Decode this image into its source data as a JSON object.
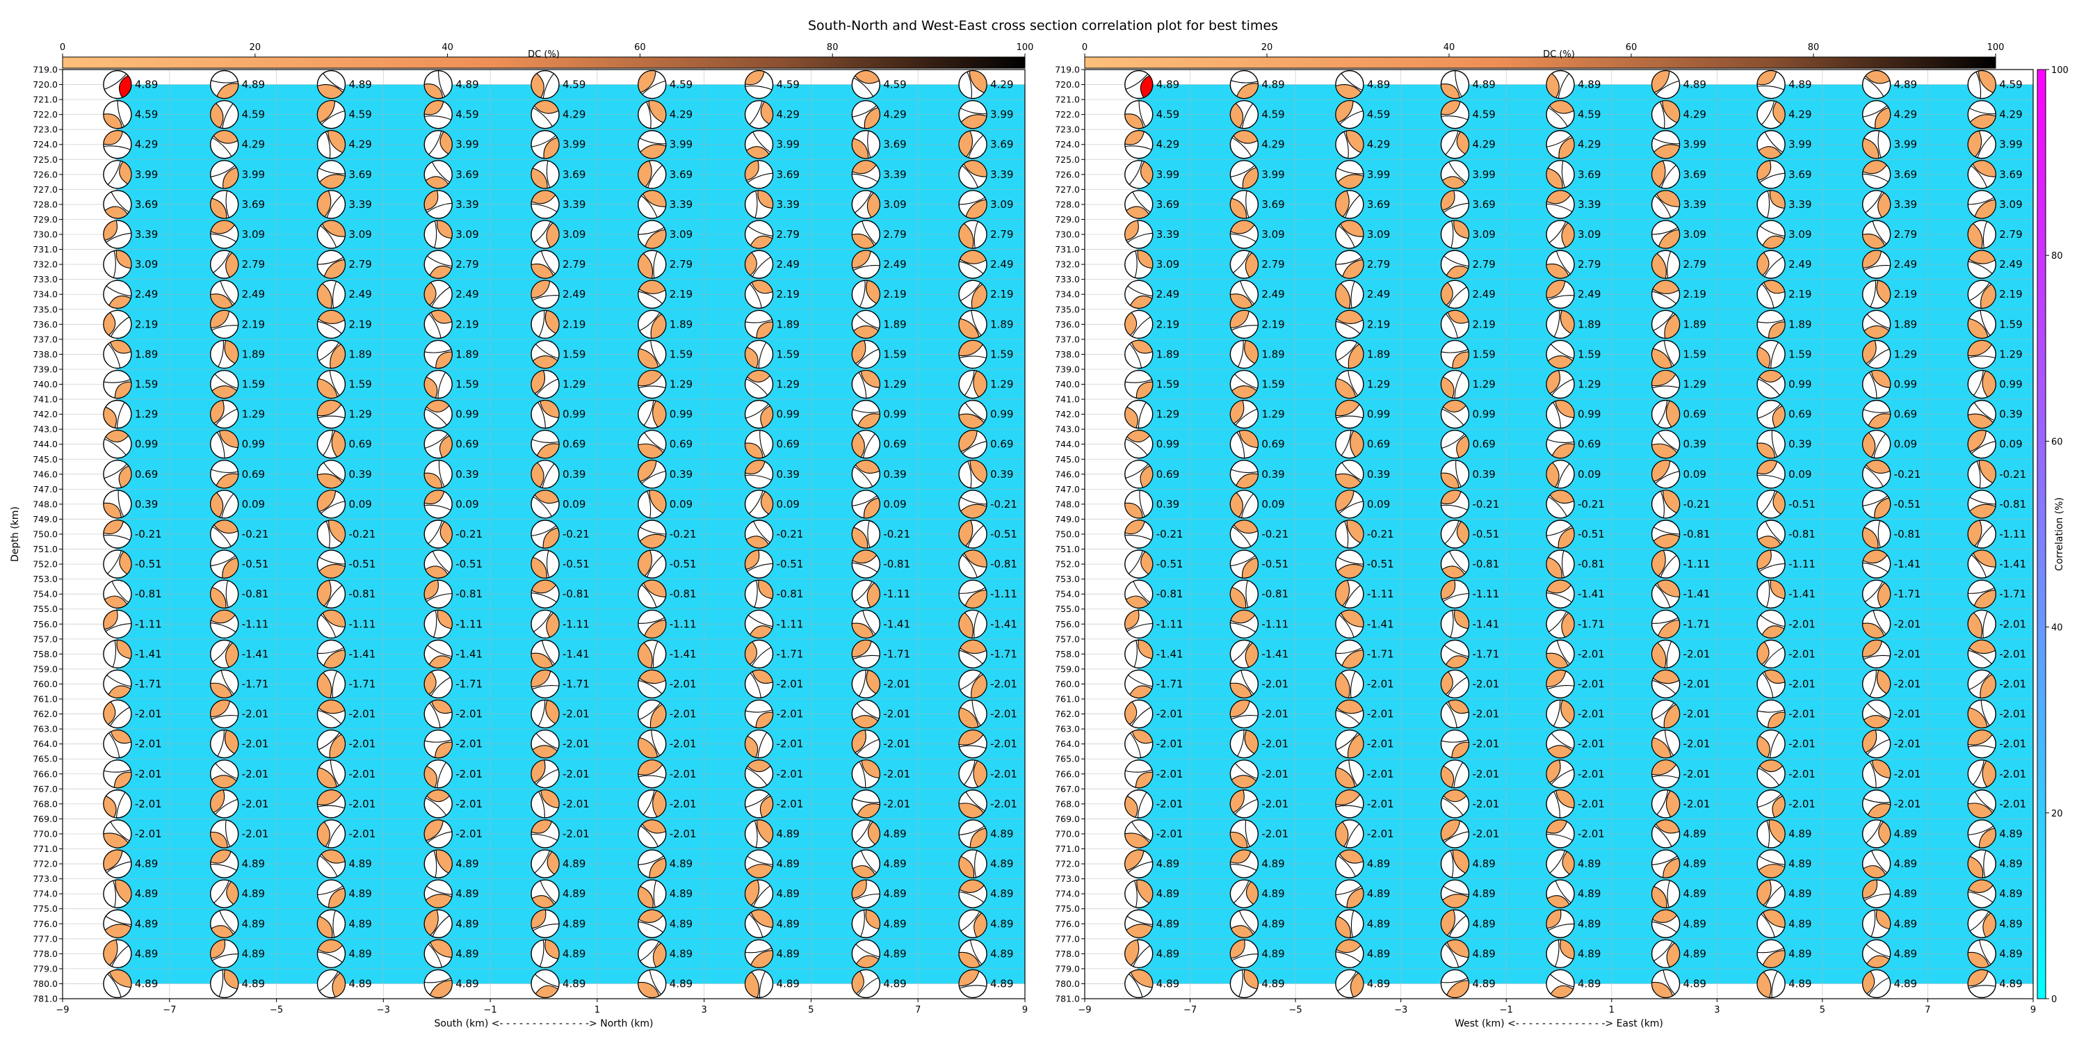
{
  "title": "South-North and West-East cross section correlation plot for best times",
  "colors": {
    "background_fill": "#29d8f8",
    "beachball_fill": "#f7a865",
    "best_solution_fill": "#ff0000",
    "dc_low": "#fdbf7a",
    "dc_mid": "#ee8f55",
    "dc_high": "#000000",
    "corr_low": "#00ffff",
    "corr_high": "#ff00ff"
  },
  "colorbars": {
    "dc": {
      "label": "DC (%)",
      "ticks": [
        "0",
        "20",
        "40",
        "60",
        "80",
        "100"
      ]
    },
    "correlation": {
      "label": "Correlation (%)",
      "ticks": [
        "0",
        "20",
        "40",
        "60",
        "80",
        "100"
      ]
    }
  },
  "chart_data": [
    {
      "type": "scatter",
      "name_panel": "south-north",
      "ylabel": "Depth (km)",
      "xlabel": "South (km) <- - - - - - - - - - - - - -> North (km)",
      "xlim": [
        -9,
        9
      ],
      "ylim": [
        781,
        719
      ],
      "x_ticks": [
        "−9",
        "−7",
        "−5",
        "−3",
        "−1",
        "1",
        "3",
        "5",
        "7",
        "9"
      ],
      "y_ticks": [
        "719.0",
        "720.0",
        "721.0",
        "722.0",
        "723.0",
        "724.0",
        "725.0",
        "726.0",
        "727.0",
        "728.0",
        "729.0",
        "730.0",
        "731.0",
        "732.0",
        "733.0",
        "734.0",
        "735.0",
        "736.0",
        "737.0",
        "738.0",
        "739.0",
        "740.0",
        "741.0",
        "742.0",
        "743.0",
        "744.0",
        "745.0",
        "746.0",
        "747.0",
        "748.0",
        "749.0",
        "750.0",
        "751.0",
        "752.0",
        "753.0",
        "754.0",
        "755.0",
        "756.0",
        "757.0",
        "758.0",
        "759.0",
        "760.0",
        "761.0",
        "762.0",
        "763.0",
        "764.0",
        "765.0",
        "766.0",
        "767.0",
        "768.0",
        "769.0",
        "770.0",
        "771.0",
        "772.0",
        "773.0",
        "774.0",
        "775.0",
        "776.0",
        "777.0",
        "778.0",
        "779.0",
        "780.0",
        "781.0"
      ],
      "x": [
        -8,
        -6,
        -4,
        -2,
        0,
        2,
        4,
        6,
        8
      ],
      "depths": [
        720,
        722,
        724,
        726,
        728,
        730,
        732,
        734,
        736,
        738,
        740,
        742,
        744,
        746,
        748,
        750,
        752,
        754,
        756,
        758,
        760,
        762,
        764,
        766,
        768,
        770,
        772,
        774,
        776,
        778,
        780
      ],
      "best": {
        "x": -8,
        "depth": 720
      },
      "labels": [
        [
          "4.89",
          "4.89",
          "4.89",
          "4.89",
          "4.59",
          "4.59",
          "4.59",
          "4.59",
          "4.29"
        ],
        [
          "4.59",
          "4.59",
          "4.59",
          "4.59",
          "4.29",
          "4.29",
          "4.29",
          "4.29",
          "3.99"
        ],
        [
          "4.29",
          "4.29",
          "4.29",
          "3.99",
          "3.99",
          "3.99",
          "3.99",
          "3.69",
          "3.69"
        ],
        [
          "3.99",
          "3.99",
          "3.69",
          "3.69",
          "3.69",
          "3.69",
          "3.69",
          "3.39",
          "3.39"
        ],
        [
          "3.69",
          "3.69",
          "3.39",
          "3.39",
          "3.39",
          "3.39",
          "3.39",
          "3.09",
          "3.09"
        ],
        [
          "3.39",
          "3.09",
          "3.09",
          "3.09",
          "3.09",
          "3.09",
          "2.79",
          "2.79",
          "2.79"
        ],
        [
          "3.09",
          "2.79",
          "2.79",
          "2.79",
          "2.79",
          "2.79",
          "2.49",
          "2.49",
          "2.49"
        ],
        [
          "2.49",
          "2.49",
          "2.49",
          "2.49",
          "2.49",
          "2.19",
          "2.19",
          "2.19",
          "2.19"
        ],
        [
          "2.19",
          "2.19",
          "2.19",
          "2.19",
          "2.19",
          "1.89",
          "1.89",
          "1.89",
          "1.89"
        ],
        [
          "1.89",
          "1.89",
          "1.89",
          "1.89",
          "1.59",
          "1.59",
          "1.59",
          "1.59",
          "1.59"
        ],
        [
          "1.59",
          "1.59",
          "1.59",
          "1.59",
          "1.29",
          "1.29",
          "1.29",
          "1.29",
          "1.29"
        ],
        [
          "1.29",
          "1.29",
          "1.29",
          "0.99",
          "0.99",
          "0.99",
          "0.99",
          "0.99",
          "0.99"
        ],
        [
          "0.99",
          "0.99",
          "0.69",
          "0.69",
          "0.69",
          "0.69",
          "0.69",
          "0.69",
          "0.69"
        ],
        [
          "0.69",
          "0.69",
          "0.39",
          "0.39",
          "0.39",
          "0.39",
          "0.39",
          "0.39",
          "0.39"
        ],
        [
          "0.39",
          "0.09",
          "0.09",
          "0.09",
          "0.09",
          "0.09",
          "0.09",
          "0.09",
          "-0.21"
        ],
        [
          "-0.21",
          "-0.21",
          "-0.21",
          "-0.21",
          "-0.21",
          "-0.21",
          "-0.21",
          "-0.21",
          "-0.51"
        ],
        [
          "-0.51",
          "-0.51",
          "-0.51",
          "-0.51",
          "-0.51",
          "-0.51",
          "-0.51",
          "-0.81",
          "-0.81"
        ],
        [
          "-0.81",
          "-0.81",
          "-0.81",
          "-0.81",
          "-0.81",
          "-0.81",
          "-0.81",
          "-1.11",
          "-1.11"
        ],
        [
          "-1.11",
          "-1.11",
          "-1.11",
          "-1.11",
          "-1.11",
          "-1.11",
          "-1.11",
          "-1.41",
          "-1.41"
        ],
        [
          "-1.41",
          "-1.41",
          "-1.41",
          "-1.41",
          "-1.41",
          "-1.41",
          "-1.71",
          "-1.71",
          "-1.71"
        ],
        [
          "-1.71",
          "-1.71",
          "-1.71",
          "-1.71",
          "-1.71",
          "-2.01",
          "-2.01",
          "-2.01",
          "-2.01"
        ],
        [
          "-2.01",
          "-2.01",
          "-2.01",
          "-2.01",
          "-2.01",
          "-2.01",
          "-2.01",
          "-2.01",
          "-2.01"
        ],
        [
          "-2.01",
          "-2.01",
          "-2.01",
          "-2.01",
          "-2.01",
          "-2.01",
          "-2.01",
          "-2.01",
          "-2.01"
        ],
        [
          "-2.01",
          "-2.01",
          "-2.01",
          "-2.01",
          "-2.01",
          "-2.01",
          "-2.01",
          "-2.01",
          "-2.01"
        ],
        [
          "-2.01",
          "-2.01",
          "-2.01",
          "-2.01",
          "-2.01",
          "-2.01",
          "-2.01",
          "-2.01",
          "-2.01"
        ],
        [
          "-2.01",
          "-2.01",
          "-2.01",
          "-2.01",
          "-2.01",
          "-2.01",
          "4.89",
          "4.89",
          "4.89"
        ],
        [
          "4.89",
          "4.89",
          "4.89",
          "4.89",
          "4.89",
          "4.89",
          "4.89",
          "4.89",
          "4.89"
        ],
        [
          "4.89",
          "4.89",
          "4.89",
          "4.89",
          "4.89",
          "4.89",
          "4.89",
          "4.89",
          "4.89"
        ],
        [
          "4.89",
          "4.89",
          "4.89",
          "4.89",
          "4.89",
          "4.89",
          "4.89",
          "4.89",
          "4.89"
        ],
        [
          "4.89",
          "4.89",
          "4.89",
          "4.89",
          "4.89",
          "4.89",
          "4.89",
          "4.89",
          "4.89"
        ],
        [
          "4.89",
          "4.89",
          "4.89",
          "4.89",
          "4.89",
          "4.89",
          "4.89",
          "4.89",
          "4.89"
        ]
      ]
    },
    {
      "type": "scatter",
      "name_panel": "west-east",
      "ylabel": "",
      "xlabel": "West (km) <- - - - - - - - - - - - - -> East (km)",
      "xlim": [
        -9,
        9
      ],
      "ylim": [
        781,
        719
      ],
      "x_ticks": [
        "−9",
        "−7",
        "−5",
        "−3",
        "−1",
        "1",
        "3",
        "5",
        "7",
        "9"
      ],
      "y_ticks": [
        "719.0",
        "720.0",
        "721.0",
        "722.0",
        "723.0",
        "724.0",
        "725.0",
        "726.0",
        "727.0",
        "728.0",
        "729.0",
        "730.0",
        "731.0",
        "732.0",
        "733.0",
        "734.0",
        "735.0",
        "736.0",
        "737.0",
        "738.0",
        "739.0",
        "740.0",
        "741.0",
        "742.0",
        "743.0",
        "744.0",
        "745.0",
        "746.0",
        "747.0",
        "748.0",
        "749.0",
        "750.0",
        "751.0",
        "752.0",
        "753.0",
        "754.0",
        "755.0",
        "756.0",
        "757.0",
        "758.0",
        "759.0",
        "760.0",
        "761.0",
        "762.0",
        "763.0",
        "764.0",
        "765.0",
        "766.0",
        "767.0",
        "768.0",
        "769.0",
        "770.0",
        "771.0",
        "772.0",
        "773.0",
        "774.0",
        "775.0",
        "776.0",
        "777.0",
        "778.0",
        "779.0",
        "780.0",
        "781.0"
      ],
      "x": [
        -8,
        -6,
        -4,
        -2,
        0,
        2,
        4,
        6,
        8
      ],
      "depths": [
        720,
        722,
        724,
        726,
        728,
        730,
        732,
        734,
        736,
        738,
        740,
        742,
        744,
        746,
        748,
        750,
        752,
        754,
        756,
        758,
        760,
        762,
        764,
        766,
        768,
        770,
        772,
        774,
        776,
        778,
        780
      ],
      "best": {
        "x": -8,
        "depth": 720
      },
      "labels": [
        [
          "4.89",
          "4.89",
          "4.89",
          "4.89",
          "4.89",
          "4.89",
          "4.89",
          "4.89",
          "4.59"
        ],
        [
          "4.59",
          "4.59",
          "4.59",
          "4.59",
          "4.59",
          "4.29",
          "4.29",
          "4.29",
          "4.29"
        ],
        [
          "4.29",
          "4.29",
          "4.29",
          "4.29",
          "4.29",
          "3.99",
          "3.99",
          "3.99",
          "3.99"
        ],
        [
          "3.99",
          "3.99",
          "3.99",
          "3.99",
          "3.69",
          "3.69",
          "3.69",
          "3.69",
          "3.69"
        ],
        [
          "3.69",
          "3.69",
          "3.69",
          "3.69",
          "3.39",
          "3.39",
          "3.39",
          "3.39",
          "3.09"
        ],
        [
          "3.39",
          "3.09",
          "3.09",
          "3.09",
          "3.09",
          "3.09",
          "3.09",
          "2.79",
          "2.79"
        ],
        [
          "3.09",
          "2.79",
          "2.79",
          "2.79",
          "2.79",
          "2.79",
          "2.49",
          "2.49",
          "2.49"
        ],
        [
          "2.49",
          "2.49",
          "2.49",
          "2.49",
          "2.49",
          "2.19",
          "2.19",
          "2.19",
          "2.19"
        ],
        [
          "2.19",
          "2.19",
          "2.19",
          "2.19",
          "1.89",
          "1.89",
          "1.89",
          "1.89",
          "1.59"
        ],
        [
          "1.89",
          "1.89",
          "1.89",
          "1.59",
          "1.59",
          "1.59",
          "1.59",
          "1.29",
          "1.29"
        ],
        [
          "1.59",
          "1.59",
          "1.29",
          "1.29",
          "1.29",
          "1.29",
          "0.99",
          "0.99",
          "0.99"
        ],
        [
          "1.29",
          "1.29",
          "0.99",
          "0.99",
          "0.99",
          "0.69",
          "0.69",
          "0.69",
          "0.39"
        ],
        [
          "0.99",
          "0.69",
          "0.69",
          "0.69",
          "0.69",
          "0.39",
          "0.39",
          "0.09",
          "0.09"
        ],
        [
          "0.69",
          "0.39",
          "0.39",
          "0.39",
          "0.09",
          "0.09",
          "0.09",
          "-0.21",
          "-0.21"
        ],
        [
          "0.39",
          "0.09",
          "0.09",
          "-0.21",
          "-0.21",
          "-0.21",
          "-0.51",
          "-0.51",
          "-0.81"
        ],
        [
          "-0.21",
          "-0.21",
          "-0.21",
          "-0.51",
          "-0.51",
          "-0.81",
          "-0.81",
          "-0.81",
          "-1.11"
        ],
        [
          "-0.51",
          "-0.51",
          "-0.51",
          "-0.81",
          "-0.81",
          "-1.11",
          "-1.11",
          "-1.41",
          "-1.41"
        ],
        [
          "-0.81",
          "-0.81",
          "-1.11",
          "-1.11",
          "-1.41",
          "-1.41",
          "-1.41",
          "-1.71",
          "-1.71"
        ],
        [
          "-1.11",
          "-1.11",
          "-1.41",
          "-1.41",
          "-1.71",
          "-1.71",
          "-2.01",
          "-2.01",
          "-2.01"
        ],
        [
          "-1.41",
          "-1.41",
          "-1.71",
          "-1.71",
          "-2.01",
          "-2.01",
          "-2.01",
          "-2.01",
          "-2.01"
        ],
        [
          "-1.71",
          "-2.01",
          "-2.01",
          "-2.01",
          "-2.01",
          "-2.01",
          "-2.01",
          "-2.01",
          "-2.01"
        ],
        [
          "-2.01",
          "-2.01",
          "-2.01",
          "-2.01",
          "-2.01",
          "-2.01",
          "-2.01",
          "-2.01",
          "-2.01"
        ],
        [
          "-2.01",
          "-2.01",
          "-2.01",
          "-2.01",
          "-2.01",
          "-2.01",
          "-2.01",
          "-2.01",
          "-2.01"
        ],
        [
          "-2.01",
          "-2.01",
          "-2.01",
          "-2.01",
          "-2.01",
          "-2.01",
          "-2.01",
          "-2.01",
          "-2.01"
        ],
        [
          "-2.01",
          "-2.01",
          "-2.01",
          "-2.01",
          "-2.01",
          "-2.01",
          "-2.01",
          "-2.01",
          "-2.01"
        ],
        [
          "-2.01",
          "-2.01",
          "-2.01",
          "-2.01",
          "-2.01",
          "4.89",
          "4.89",
          "4.89",
          "4.89"
        ],
        [
          "4.89",
          "4.89",
          "4.89",
          "4.89",
          "4.89",
          "4.89",
          "4.89",
          "4.89",
          "4.89"
        ],
        [
          "4.89",
          "4.89",
          "4.89",
          "4.89",
          "4.89",
          "4.89",
          "4.89",
          "4.89",
          "4.89"
        ],
        [
          "4.89",
          "4.89",
          "4.89",
          "4.89",
          "4.89",
          "4.89",
          "4.89",
          "4.89",
          "4.89"
        ],
        [
          "4.89",
          "4.89",
          "4.89",
          "4.89",
          "4.89",
          "4.89",
          "4.89",
          "4.89",
          "4.89"
        ],
        [
          "4.89",
          "4.89",
          "4.89",
          "4.89",
          "4.89",
          "4.89",
          "4.89",
          "4.89",
          "4.89"
        ]
      ]
    }
  ]
}
